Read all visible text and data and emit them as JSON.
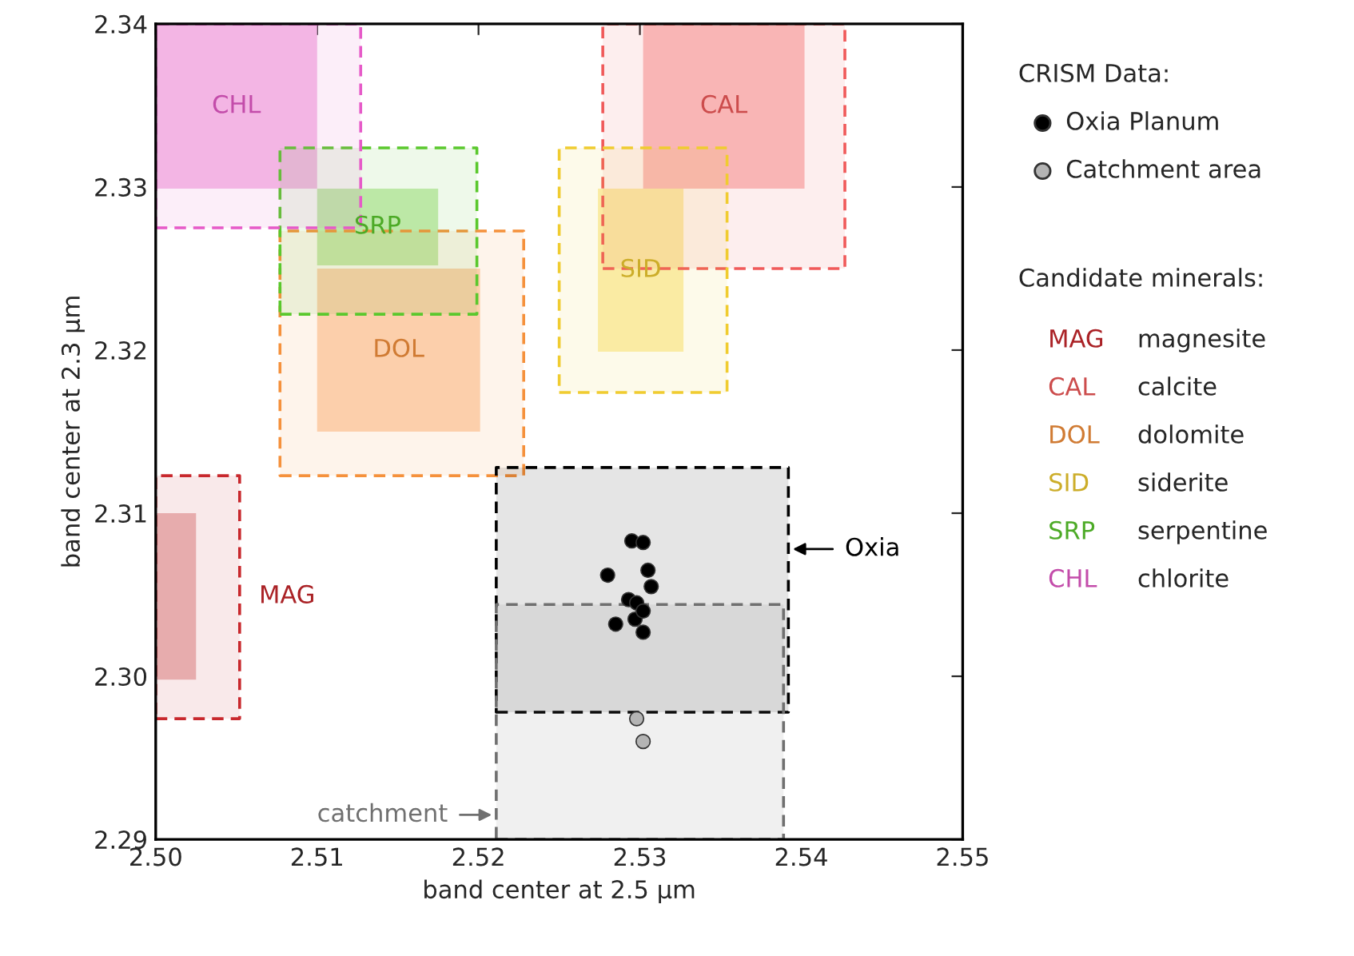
{
  "chart_data": {
    "type": "scatter",
    "xlabel": "band center at 2.5 µm",
    "ylabel": "band center at 2.3 µm",
    "xlim": [
      2.5,
      2.55
    ],
    "ylim": [
      2.29,
      2.34
    ],
    "xticks": [
      {
        "value": 2.5,
        "label": "2.50"
      },
      2.51,
      2.52,
      2.53,
      2.54,
      2.55
    ],
    "yticks": [
      2.29,
      {
        "value": 2.3,
        "label": "2.30"
      },
      2.31,
      2.32,
      2.33,
      2.34
    ],
    "legend": "right",
    "legend_title": "CRISM Data:",
    "grid": false,
    "series": [
      {
        "name": "MAG magnesite",
        "type": "area",
        "line_style": "dashed",
        "color": "#c8282d",
        "x": [
          2.5,
          2.5052,
          2.5052,
          2.5,
          2.5
        ],
        "values": [
          2.2974,
          2.2974,
          2.3123,
          2.3123,
          2.2974
        ]
      },
      {
        "name": "CAL calcite",
        "type": "area",
        "line_style": "dashed",
        "color": "#f05a5a",
        "x": [
          2.5277,
          2.5427,
          2.5427,
          2.5277,
          2.5277
        ],
        "values": [
          2.325,
          2.325,
          2.34,
          2.34,
          2.325
        ]
      },
      {
        "name": "DOL dolomite",
        "type": "area",
        "line_style": "dashed",
        "color": "#f5913c",
        "x": [
          2.5077,
          2.5228,
          2.5228,
          2.5077,
          2.5077
        ],
        "values": [
          2.3123,
          2.3123,
          2.3273,
          2.3273,
          2.3123
        ]
      },
      {
        "name": "SID siderite",
        "type": "area",
        "line_style": "dashed",
        "color": "#f0cc30",
        "x": [
          2.525,
          2.5354,
          2.5354,
          2.525,
          2.525
        ],
        "values": [
          2.3174,
          2.3174,
          2.3324,
          2.3324,
          2.3174
        ]
      },
      {
        "name": "SRP serpentine",
        "type": "area",
        "line_style": "dashed",
        "color": "#5ac82d",
        "x": [
          2.5077,
          2.5199,
          2.5199,
          2.5077,
          2.5077
        ],
        "values": [
          2.3222,
          2.3222,
          2.3324,
          2.3324,
          2.3222
        ]
      },
      {
        "name": "CHL chlorite",
        "type": "area",
        "line_style": "dashed",
        "color": "#e65ac8",
        "x": [
          2.5,
          2.5127,
          2.5127,
          2.5,
          2.5
        ],
        "values": [
          2.3275,
          2.3275,
          2.34,
          2.34,
          2.3275
        ]
      },
      {
        "type": "area",
        "color": "#ebbcbc",
        "x": [
          2.5,
          2.5025,
          2.5025,
          2.5,
          2.5
        ],
        "values": [
          2.2998,
          2.2998,
          2.31,
          2.31,
          2.2998
        ]
      },
      {
        "type": "area",
        "color": "#fbc0c0",
        "x": [
          2.5302,
          2.5402,
          2.5402,
          2.5302,
          2.5302
        ],
        "values": [
          2.3299,
          2.3299,
          2.34,
          2.34,
          2.3299
        ]
      },
      {
        "type": "area",
        "color": "#fdd6b8",
        "x": [
          2.51,
          2.5201,
          2.5201,
          2.51,
          2.51
        ],
        "values": [
          2.315,
          2.315,
          2.325,
          2.325,
          2.315
        ]
      },
      {
        "type": "area",
        "color": "#fcefb0",
        "x": [
          2.5274,
          2.5327,
          2.5327,
          2.5274,
          2.5274
        ],
        "values": [
          2.3199,
          2.3199,
          2.3299,
          2.3299,
          2.3199
        ]
      },
      {
        "type": "area",
        "color": "#c8ecb4",
        "x": [
          2.51,
          2.5175,
          2.5175,
          2.51,
          2.51
        ],
        "values": [
          2.3252,
          2.3252,
          2.3299,
          2.3299,
          2.3252
        ]
      },
      {
        "type": "area",
        "color": "#f5c0e8",
        "x": [
          2.5,
          2.51,
          2.51,
          2.5,
          2.5
        ],
        "values": [
          2.3299,
          2.3299,
          2.34,
          2.34,
          2.3299
        ]
      },
      {
        "type": "area",
        "line_style": "dashed",
        "color": "#000000",
        "x": [
          2.5211,
          2.5392,
          2.5392,
          2.5211,
          2.5211
        ],
        "values": [
          2.2978,
          2.2978,
          2.3128,
          2.3128,
          2.2978
        ]
      },
      {
        "type": "area",
        "line_style": "dashed",
        "color": "#707070",
        "x": [
          2.5211,
          2.5389,
          2.5389,
          2.5211,
          2.5211
        ],
        "values": [
          2.29,
          2.29,
          2.3044,
          2.3044,
          2.29
        ]
      },
      {
        "name": "Oxia Planum",
        "type": "scatter",
        "marker": "circle",
        "color": "#000000",
        "x": [
          2.528,
          2.5295,
          2.5302,
          2.5305,
          2.5307,
          2.5293,
          2.5298,
          2.5285,
          2.5297,
          2.5302,
          2.5302
        ],
        "values": [
          2.3062,
          2.3083,
          2.3082,
          2.3065,
          2.3055,
          2.3047,
          2.3045,
          2.3032,
          2.3035,
          2.304,
          2.3027
        ]
      },
      {
        "name": "Catchment area",
        "type": "scatter",
        "marker": "circle",
        "color": "#b4b4b4",
        "x": [
          2.5298,
          2.5302
        ],
        "values": [
          2.2974,
          2.296
        ]
      }
    ],
    "annotations": [
      "MAG",
      "CAL",
      "DOL",
      "SID",
      "SRP",
      "CHL",
      "Oxia",
      "catchment",
      "Candidate minerals:"
    ]
  }
}
